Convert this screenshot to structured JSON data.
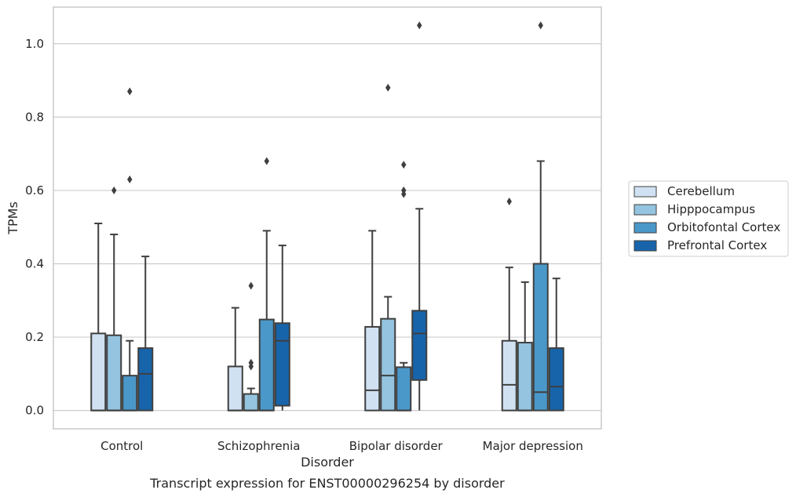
{
  "chart_data": {
    "type": "boxplot",
    "caption": "Transcript expression for ENST00000296254 by disorder",
    "xlabel": "Disorder",
    "ylabel": "TPMs",
    "ylim": [
      -0.05,
      1.1
    ],
    "yticks": [
      0.0,
      0.2,
      0.4,
      0.6,
      0.8,
      1.0
    ],
    "ytick_labels": [
      "0.0",
      "0.2",
      "0.4",
      "0.6",
      "0.8",
      "1.0"
    ],
    "grid": true,
    "legend_position": "right",
    "categories": [
      "Control",
      "Schizophrenia",
      "Bipolar disorder",
      "Major depression"
    ],
    "series": [
      {
        "name": "Cerebellum",
        "color": "#d0e1f2",
        "boxes": [
          {
            "whislo": 0.0,
            "q1": 0.0,
            "med": 0.0,
            "q3": 0.21,
            "whishi": 0.51,
            "fliers": []
          },
          {
            "whislo": 0.0,
            "q1": 0.0,
            "med": 0.0,
            "q3": 0.12,
            "whishi": 0.28,
            "fliers": []
          },
          {
            "whislo": 0.0,
            "q1": 0.0,
            "med": 0.055,
            "q3": 0.228,
            "whishi": 0.49,
            "fliers": []
          },
          {
            "whislo": 0.0,
            "q1": 0.0,
            "med": 0.07,
            "q3": 0.19,
            "whishi": 0.39,
            "fliers": [
              0.57
            ]
          }
        ]
      },
      {
        "name": "Hipppocampus",
        "color": "#94c4df",
        "boxes": [
          {
            "whislo": 0.0,
            "q1": 0.0,
            "med": 0.0,
            "q3": 0.205,
            "whishi": 0.48,
            "fliers": [
              0.6
            ]
          },
          {
            "whislo": 0.0,
            "q1": 0.0,
            "med": 0.0,
            "q3": 0.045,
            "whishi": 0.06,
            "fliers": [
              0.12,
              0.13,
              0.34
            ]
          },
          {
            "whislo": 0.0,
            "q1": 0.0,
            "med": 0.095,
            "q3": 0.25,
            "whishi": 0.31,
            "fliers": [
              0.88
            ]
          },
          {
            "whislo": 0.0,
            "q1": 0.0,
            "med": 0.0,
            "q3": 0.185,
            "whishi": 0.35,
            "fliers": []
          }
        ]
      },
      {
        "name": "Orbitofontal Cortex",
        "color": "#4a98c9",
        "boxes": [
          {
            "whislo": 0.0,
            "q1": 0.0,
            "med": 0.0,
            "q3": 0.095,
            "whishi": 0.19,
            "fliers": [
              0.63,
              0.87
            ]
          },
          {
            "whislo": 0.0,
            "q1": 0.0,
            "med": 0.0,
            "q3": 0.248,
            "whishi": 0.49,
            "fliers": [
              0.68
            ]
          },
          {
            "whislo": 0.0,
            "q1": 0.0,
            "med": 0.0,
            "q3": 0.118,
            "whishi": 0.13,
            "fliers": [
              0.59,
              0.6,
              0.67
            ]
          },
          {
            "whislo": 0.0,
            "q1": 0.0,
            "med": 0.05,
            "q3": 0.4,
            "whishi": 0.68,
            "fliers": [
              1.05
            ]
          }
        ]
      },
      {
        "name": "Prefrontal Cortex",
        "color": "#1764ab",
        "boxes": [
          {
            "whislo": 0.0,
            "q1": 0.0,
            "med": 0.1,
            "q3": 0.17,
            "whishi": 0.42,
            "fliers": []
          },
          {
            "whislo": 0.0,
            "q1": 0.013,
            "med": 0.19,
            "q3": 0.238,
            "whishi": 0.45,
            "fliers": []
          },
          {
            "whislo": 0.0,
            "q1": 0.083,
            "med": 0.21,
            "q3": 0.272,
            "whishi": 0.55,
            "fliers": [
              1.05
            ]
          },
          {
            "whislo": 0.0,
            "q1": 0.0,
            "med": 0.065,
            "q3": 0.17,
            "whishi": 0.36,
            "fliers": []
          }
        ]
      }
    ]
  }
}
